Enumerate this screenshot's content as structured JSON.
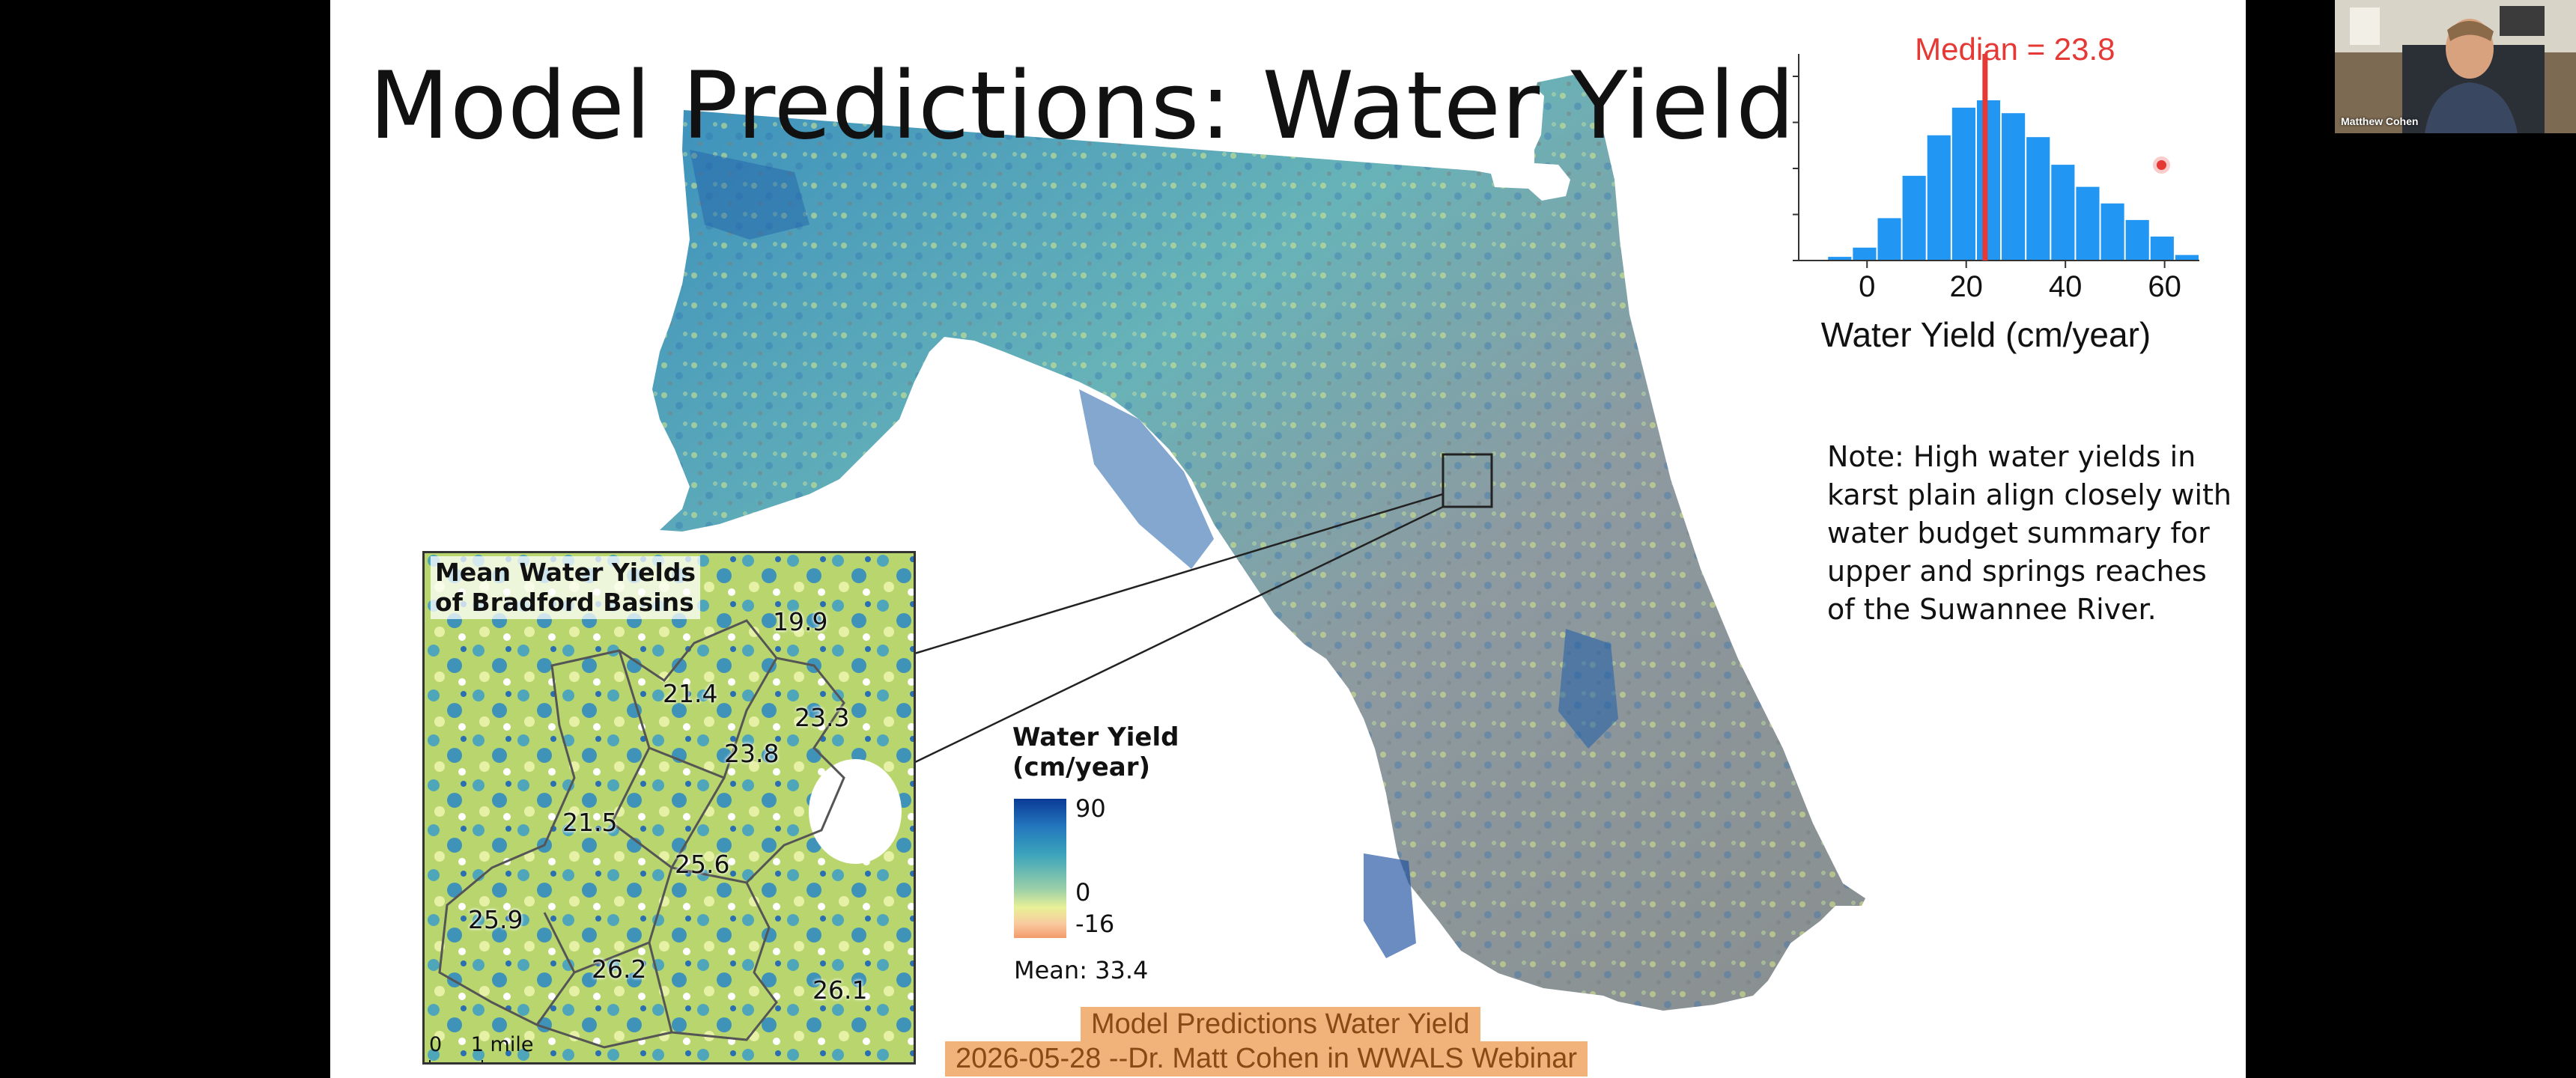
{
  "slide": {
    "title": "Model Predictions: Water Yield",
    "note_lines": [
      "Note: High water yields in",
      "karst plain align closely with",
      "water budget summary for",
      "upper and springs reaches",
      "of the Suwannee River."
    ],
    "inset": {
      "title_lines": [
        "Mean Water Yields",
        "of Bradford Basins"
      ],
      "basin_values": [
        "19.9",
        "21.4",
        "23.3",
        "23.8",
        "21.5",
        "25.6",
        "25.9",
        "26.2",
        "26.1"
      ],
      "scale_zero": "0",
      "scale_label": "1 mile"
    },
    "legend": {
      "title_line1": "Water Yield",
      "title_line2": "(cm/year)",
      "max": "90",
      "zero": "0",
      "min": "-16",
      "mean": "Mean: 33.4",
      "colors": [
        "#0b3a96",
        "#2377bd",
        "#3ba4bc",
        "#9bd0a8",
        "#e8f097",
        "#f9c99e",
        "#f39a6a"
      ]
    },
    "captions": {
      "line1": "Model Predictions Water Yield",
      "line2": "2026-05-28 --Dr. Matt Cohen in WWALS Webinar"
    }
  },
  "chart_data": {
    "type": "bar",
    "title": "Median = 23.8",
    "xlabel": "Water Yield (cm/year)",
    "ylabel": "",
    "x_ticks": [
      "0",
      "20",
      "40",
      "60"
    ],
    "xlim": [
      -10,
      67
    ],
    "median": 23.8,
    "bin_width": 5,
    "bin_starts": [
      -8,
      -3,
      2,
      7,
      12,
      17,
      22,
      27,
      32,
      37,
      42,
      47,
      52,
      57,
      62
    ],
    "values": [
      0.02,
      0.07,
      0.23,
      0.46,
      0.68,
      0.83,
      0.87,
      0.8,
      0.67,
      0.52,
      0.4,
      0.31,
      0.22,
      0.13,
      0.03
    ],
    "bar_color": "#2196f3",
    "median_color": "#e53935"
  },
  "webcam": {
    "participant_name": "Matthew Cohen"
  }
}
